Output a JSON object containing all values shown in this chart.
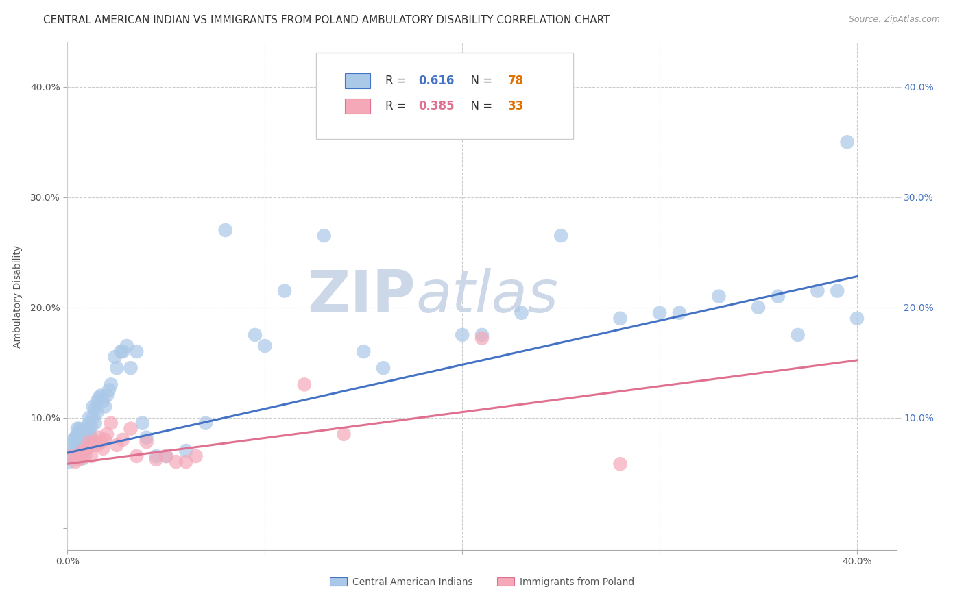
{
  "title": "CENTRAL AMERICAN INDIAN VS IMMIGRANTS FROM POLAND AMBULATORY DISABILITY CORRELATION CHART",
  "source": "Source: ZipAtlas.com",
  "ylabel": "Ambulatory Disability",
  "xlim": [
    0.0,
    0.42
  ],
  "ylim": [
    -0.02,
    0.44
  ],
  "x_ticks": [
    0.0,
    0.1,
    0.2,
    0.3,
    0.4
  ],
  "y_ticks": [
    0.0,
    0.1,
    0.2,
    0.3,
    0.4
  ],
  "x_tick_labels": [
    "0.0%",
    "",
    "",
    "",
    "40.0%"
  ],
  "y_tick_labels": [
    "",
    "10.0%",
    "20.0%",
    "30.0%",
    "40.0%"
  ],
  "right_y_tick_labels": [
    "10.0%",
    "20.0%",
    "30.0%",
    "40.0%"
  ],
  "blue_R": "0.616",
  "blue_N": "78",
  "pink_R": "0.385",
  "pink_N": "33",
  "scatter_blue_color": "#aac8e8",
  "scatter_pink_color": "#f4a8b8",
  "line_blue_color": "#4472c4",
  "line_pink_color": "#e07090",
  "legend_R_color": "#4472c4",
  "legend_N_color": "#e07000",
  "background_color": "#ffffff",
  "grid_color": "#cccccc",
  "title_fontsize": 11,
  "source_fontsize": 9,
  "axis_label_fontsize": 10,
  "tick_fontsize": 10,
  "watermark_zip": "ZIP",
  "watermark_atlas": "atlas",
  "watermark_color": "#ccd8e8",
  "blue_points_x": [
    0.001,
    0.002,
    0.002,
    0.003,
    0.003,
    0.004,
    0.004,
    0.005,
    0.005,
    0.005,
    0.006,
    0.006,
    0.006,
    0.007,
    0.007,
    0.007,
    0.008,
    0.008,
    0.008,
    0.009,
    0.009,
    0.009,
    0.01,
    0.01,
    0.01,
    0.011,
    0.011,
    0.011,
    0.012,
    0.012,
    0.013,
    0.013,
    0.014,
    0.014,
    0.015,
    0.015,
    0.016,
    0.017,
    0.018,
    0.019,
    0.02,
    0.021,
    0.022,
    0.024,
    0.025,
    0.027,
    0.028,
    0.03,
    0.032,
    0.035,
    0.038,
    0.04,
    0.045,
    0.05,
    0.06,
    0.07,
    0.08,
    0.095,
    0.1,
    0.11,
    0.13,
    0.15,
    0.16,
    0.2,
    0.21,
    0.23,
    0.25,
    0.28,
    0.3,
    0.31,
    0.33,
    0.35,
    0.36,
    0.37,
    0.38,
    0.39,
    0.395,
    0.4
  ],
  "blue_points_y": [
    0.06,
    0.065,
    0.075,
    0.07,
    0.08,
    0.068,
    0.082,
    0.075,
    0.085,
    0.09,
    0.068,
    0.078,
    0.09,
    0.072,
    0.08,
    0.088,
    0.063,
    0.075,
    0.085,
    0.078,
    0.082,
    0.09,
    0.08,
    0.072,
    0.085,
    0.095,
    0.088,
    0.1,
    0.082,
    0.092,
    0.1,
    0.11,
    0.095,
    0.108,
    0.105,
    0.115,
    0.118,
    0.12,
    0.115,
    0.11,
    0.12,
    0.125,
    0.13,
    0.155,
    0.145,
    0.16,
    0.16,
    0.165,
    0.145,
    0.16,
    0.095,
    0.082,
    0.065,
    0.065,
    0.07,
    0.095,
    0.27,
    0.175,
    0.165,
    0.215,
    0.265,
    0.16,
    0.145,
    0.175,
    0.175,
    0.195,
    0.265,
    0.19,
    0.195,
    0.195,
    0.21,
    0.2,
    0.21,
    0.175,
    0.215,
    0.215,
    0.35,
    0.19
  ],
  "pink_points_x": [
    0.002,
    0.004,
    0.005,
    0.006,
    0.007,
    0.008,
    0.009,
    0.01,
    0.011,
    0.012,
    0.013,
    0.014,
    0.015,
    0.016,
    0.017,
    0.018,
    0.019,
    0.02,
    0.022,
    0.025,
    0.028,
    0.032,
    0.035,
    0.04,
    0.045,
    0.05,
    0.055,
    0.06,
    0.065,
    0.12,
    0.14,
    0.21,
    0.28
  ],
  "pink_points_y": [
    0.065,
    0.06,
    0.065,
    0.062,
    0.068,
    0.07,
    0.065,
    0.072,
    0.078,
    0.065,
    0.075,
    0.078,
    0.075,
    0.082,
    0.078,
    0.072,
    0.08,
    0.085,
    0.095,
    0.075,
    0.08,
    0.09,
    0.065,
    0.078,
    0.062,
    0.065,
    0.06,
    0.06,
    0.065,
    0.13,
    0.085,
    0.172,
    0.058
  ],
  "blue_line_y_start": 0.068,
  "blue_line_y_end": 0.228,
  "pink_line_y_start": 0.058,
  "pink_line_y_end": 0.152
}
